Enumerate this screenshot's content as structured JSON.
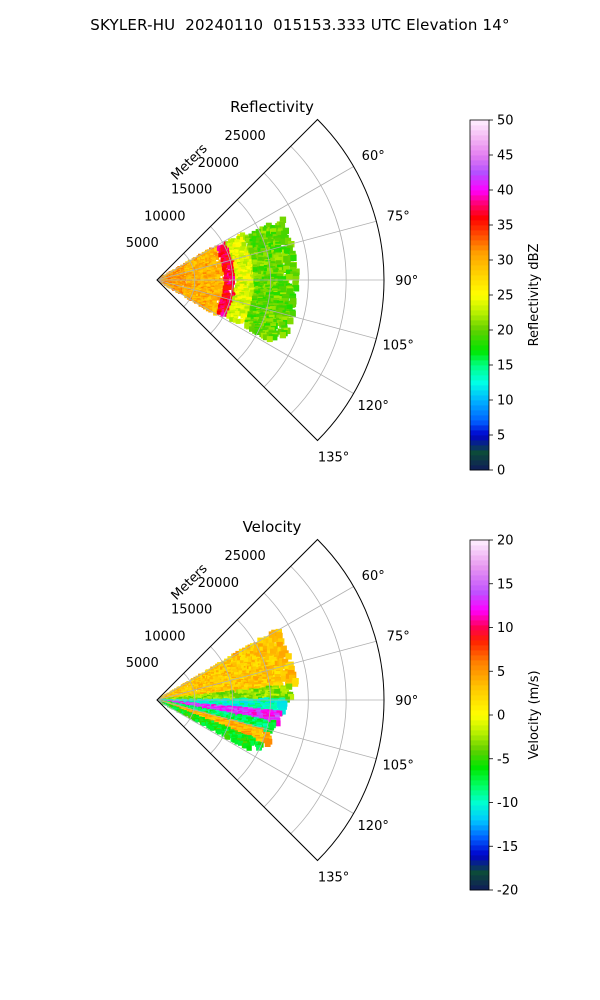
{
  "suptitle": "SKYLER-HU  20240110  015153.333 UTC Elevation 14°",
  "chart_data": [
    {
      "type": "heatmap",
      "title": "Reflectivity",
      "projection": "polar sector (azimuth clockwise from north, range radial)",
      "range_label": "Meters",
      "range_ticks": [
        5000,
        10000,
        15000,
        20000,
        25000
      ],
      "range_limit": [
        0,
        30000
      ],
      "azimuth_limit": [
        45,
        135
      ],
      "azimuth_ticks": [
        "60°",
        "75°",
        "90°",
        "105°",
        "120°",
        "135°"
      ],
      "grid": true,
      "colorbar": {
        "label": "Reflectivity dBZ",
        "ticks": [
          0,
          5,
          10,
          15,
          20,
          25,
          30,
          35,
          40,
          45,
          50
        ],
        "range": [
          0,
          50
        ],
        "stops": [
          {
            "v": 0,
            "color": "#101a5a"
          },
          {
            "v": 2.5,
            "color": "#0c4a3a"
          },
          {
            "v": 5,
            "color": "#0000cc"
          },
          {
            "v": 7,
            "color": "#0060ff"
          },
          {
            "v": 10,
            "color": "#00b4ff"
          },
          {
            "v": 12.5,
            "color": "#00ffe6"
          },
          {
            "v": 15,
            "color": "#00ff80"
          },
          {
            "v": 17,
            "color": "#00e600"
          },
          {
            "v": 20,
            "color": "#60d000"
          },
          {
            "v": 22.5,
            "color": "#b8f000"
          },
          {
            "v": 25,
            "color": "#ffff00"
          },
          {
            "v": 28,
            "color": "#ffd200"
          },
          {
            "v": 31,
            "color": "#ffa000"
          },
          {
            "v": 33.5,
            "color": "#ff5000"
          },
          {
            "v": 36,
            "color": "#ff0000"
          },
          {
            "v": 38,
            "color": "#ff0070"
          },
          {
            "v": 40,
            "color": "#ff00ff"
          },
          {
            "v": 42.5,
            "color": "#b450ff"
          },
          {
            "v": 45,
            "color": "#e47ff0"
          },
          {
            "v": 47.5,
            "color": "#f4b8f4"
          },
          {
            "v": 50,
            "color": "#fff0ff"
          }
        ]
      },
      "echo_regions": [
        {
          "az": [
            60,
            120
          ],
          "range": [
            0,
            4000
          ],
          "value": 31
        },
        {
          "az": [
            60,
            120
          ],
          "range": [
            4000,
            9000
          ],
          "value": 30
        },
        {
          "az": [
            62,
            118
          ],
          "range": [
            9000,
            10500
          ],
          "value": 37
        },
        {
          "az": [
            62,
            118
          ],
          "range": [
            10500,
            13000
          ],
          "value": 24
        },
        {
          "az": [
            64,
            118
          ],
          "range": [
            13000,
            18500
          ],
          "value": 20
        }
      ]
    },
    {
      "type": "heatmap",
      "title": "Velocity",
      "projection": "polar sector (azimuth clockwise from north, range radial)",
      "range_label": "Meters",
      "range_ticks": [
        5000,
        10000,
        15000,
        20000,
        25000
      ],
      "range_limit": [
        0,
        30000
      ],
      "azimuth_limit": [
        45,
        135
      ],
      "azimuth_ticks": [
        "60°",
        "75°",
        "90°",
        "105°",
        "120°",
        "135°"
      ],
      "grid": true,
      "colorbar": {
        "label": "Velocity (m/s)",
        "ticks": [
          -20,
          -15,
          -10,
          -5,
          0,
          5,
          10,
          15,
          20
        ],
        "range": [
          -20,
          20
        ],
        "stops": [
          {
            "v": -20,
            "color": "#101a5a"
          },
          {
            "v": -18,
            "color": "#0c4a3a"
          },
          {
            "v": -16,
            "color": "#0000cc"
          },
          {
            "v": -14,
            "color": "#0060ff"
          },
          {
            "v": -12,
            "color": "#00c8ff"
          },
          {
            "v": -10,
            "color": "#00ffd0"
          },
          {
            "v": -8,
            "color": "#00ff60"
          },
          {
            "v": -6,
            "color": "#00e600"
          },
          {
            "v": -4,
            "color": "#60d000"
          },
          {
            "v": -2,
            "color": "#b8f000"
          },
          {
            "v": 0,
            "color": "#ffff00"
          },
          {
            "v": 3,
            "color": "#ffc800"
          },
          {
            "v": 6,
            "color": "#ff8000"
          },
          {
            "v": 8.5,
            "color": "#ff2000"
          },
          {
            "v": 10,
            "color": "#ff0050"
          },
          {
            "v": 12,
            "color": "#ff00ff"
          },
          {
            "v": 14,
            "color": "#c050ff"
          },
          {
            "v": 17,
            "color": "#e898f0"
          },
          {
            "v": 20,
            "color": "#fff0ff"
          }
        ]
      },
      "echo_regions": [
        {
          "az": [
            60,
            84
          ],
          "range": [
            0,
            18500
          ],
          "value": 3
        },
        {
          "az": [
            84,
            90
          ],
          "range": [
            0,
            18000
          ],
          "value": -3
        },
        {
          "az": [
            90,
            96
          ],
          "range": [
            0,
            17000
          ],
          "value": -10
        },
        {
          "az": [
            96,
            101
          ],
          "range": [
            0,
            16500
          ],
          "value": 13
        },
        {
          "az": [
            101,
            106
          ],
          "range": [
            0,
            16000
          ],
          "value": -8
        },
        {
          "az": [
            106,
            112
          ],
          "range": [
            0,
            16000
          ],
          "value": 4
        },
        {
          "az": [
            112,
            118
          ],
          "range": [
            0,
            15000
          ],
          "value": -6
        }
      ]
    }
  ]
}
